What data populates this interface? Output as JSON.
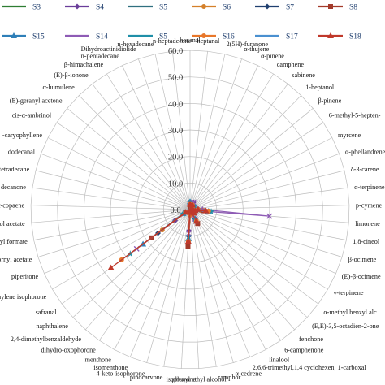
{
  "chart_data": {
    "type": "radar",
    "title": "",
    "rlim": [
      0,
      60
    ],
    "ticks": [
      "0.0",
      "10.0",
      "20.0",
      "30.0",
      "40.0",
      "50.0",
      "60.0"
    ],
    "tick_values": [
      0,
      10,
      20,
      30,
      40,
      50,
      60
    ],
    "grid": true,
    "legend_position": "top",
    "categories": [
      "hexanal",
      "heptanal",
      "2(5H)-furanone",
      "α-thujene",
      "α-pinene",
      "camphene",
      "sabinene",
      "1-heptanol",
      "β-pinene",
      "6-methyl-5-hepten-",
      "myrcene",
      "α-phellandrene",
      "δ-3-carene",
      "α-terpinene",
      "p-cymene",
      "limonene",
      "1,8-cineol",
      "β-ocimene",
      "(E)-β-ocimene",
      "γ-terpinene",
      "α-methyl benzyl alc",
      "(E,E)-3,5-octadien-2-one",
      "fenchone",
      "6-camphenone",
      "linalool",
      "2,6,6-trimethyl,1,4 cyclohexen, 1-carboxal",
      "α-cedrene",
      "camphor",
      "phenyl ethyl alcohol",
      "isophorone",
      "pinocarvone",
      "4-keto-isophorone",
      "isomenthone",
      "menthone",
      "dihydro-oxophorone",
      "2,4-dimethylbenzaldehyde",
      "naphthalene",
      "safranal",
      "methylene isophorone",
      "piperitone",
      "bornyl acetate",
      "geranyl formate",
      "ellol acetate",
      "α-copaene",
      "l decanone",
      "-tetradecane",
      "dodecanal",
      "-caryophyllene",
      "cis-α-ambrinol",
      "(E)-geranyl acetone",
      "α-humulene",
      "(E)-β-ionone",
      "β-himachalene",
      "n-pentadecane",
      "Dihydroactinidiolide",
      "n-hexadecane",
      "n-heptadecane"
    ],
    "series": [
      {
        "name": "S3",
        "color": "#2e7d32",
        "marker": "none",
        "values": [
          3,
          0,
          0,
          0,
          2,
          0,
          0,
          0,
          1,
          0,
          0,
          0,
          0,
          0,
          2,
          3,
          1,
          0,
          0,
          1,
          0,
          1,
          0,
          0,
          2,
          0,
          0,
          0,
          1,
          3,
          0,
          1,
          0,
          0,
          0,
          0,
          0,
          2,
          0,
          0,
          0,
          0,
          0,
          0,
          0,
          0,
          0,
          0,
          0,
          0,
          0,
          0,
          0,
          0,
          0,
          0,
          0
        ]
      },
      {
        "name": "S4",
        "color": "#6a3d9a",
        "marker": "diamond",
        "values": [
          2,
          0,
          1,
          0,
          3,
          0,
          0,
          0,
          1,
          0,
          0,
          0,
          0,
          0,
          3,
          4,
          2,
          0,
          0,
          1,
          0,
          2,
          0,
          0,
          4,
          0,
          0,
          1,
          1,
          8,
          1,
          1,
          0,
          0,
          0,
          0,
          0,
          7,
          2,
          0,
          0,
          0,
          0,
          0,
          0,
          0,
          0,
          0,
          0,
          0,
          0,
          0,
          0,
          0,
          0,
          0,
          0
        ]
      },
      {
        "name": "S5",
        "color": "#2f6f7f",
        "marker": "none",
        "values": [
          3,
          1,
          0,
          0,
          2,
          0,
          0,
          0,
          2,
          0,
          0,
          0,
          0,
          0,
          3,
          5,
          2,
          0,
          0,
          1,
          0,
          1,
          0,
          0,
          3,
          0,
          0,
          0,
          2,
          9,
          0,
          1,
          0,
          0,
          0,
          0,
          0,
          9,
          1,
          0,
          0,
          0,
          0,
          0,
          0,
          0,
          0,
          0,
          0,
          0,
          0,
          0,
          0,
          0,
          0,
          0,
          0
        ]
      },
      {
        "name": "S6",
        "color": "#d4802a",
        "marker": "circle",
        "values": [
          2,
          0,
          0,
          0,
          1,
          0,
          0,
          0,
          1,
          0,
          0,
          0,
          0,
          0,
          2,
          4,
          1,
          0,
          0,
          1,
          0,
          2,
          0,
          0,
          5,
          0,
          0,
          0,
          1,
          12,
          1,
          0,
          0,
          0,
          0,
          0,
          0,
          13,
          2,
          0,
          0,
          0,
          0,
          0,
          0,
          0,
          0,
          0,
          0,
          0,
          0,
          0,
          0,
          0,
          0,
          0,
          0
        ]
      },
      {
        "name": "S7",
        "color": "#1f3f6f",
        "marker": "diamond",
        "values": [
          3,
          0,
          0,
          0,
          2,
          0,
          0,
          0,
          1,
          0,
          0,
          0,
          0,
          0,
          3,
          6,
          2,
          0,
          0,
          1,
          0,
          2,
          0,
          0,
          4,
          0,
          0,
          0,
          1,
          10,
          0,
          1,
          0,
          0,
          0,
          0,
          0,
          15,
          2,
          0,
          0,
          0,
          0,
          0,
          0,
          0,
          0,
          0,
          0,
          0,
          0,
          0,
          0,
          0,
          0,
          0,
          0
        ]
      },
      {
        "name": "S8",
        "color": "#a33a2a",
        "marker": "square",
        "values": [
          2,
          0,
          1,
          0,
          2,
          0,
          0,
          0,
          1,
          0,
          0,
          0,
          0,
          0,
          2,
          5,
          1,
          0,
          0,
          1,
          0,
          1,
          0,
          0,
          6,
          0,
          0,
          0,
          2,
          14,
          1,
          1,
          0,
          0,
          0,
          0,
          0,
          18,
          2,
          0,
          0,
          0,
          0,
          0,
          0,
          0,
          0,
          0,
          0,
          0,
          0,
          0,
          0,
          0,
          0,
          0,
          0
        ]
      },
      {
        "name": "S15",
        "color": "#2f7fb8",
        "marker": "triangle",
        "values": [
          3,
          0,
          0,
          0,
          2,
          0,
          0,
          0,
          2,
          0,
          0,
          0,
          0,
          0,
          3,
          7,
          2,
          0,
          0,
          2,
          0,
          2,
          0,
          0,
          5,
          0,
          0,
          0,
          1,
          11,
          0,
          1,
          0,
          0,
          0,
          0,
          0,
          22,
          3,
          0,
          0,
          0,
          0,
          0,
          0,
          0,
          0,
          0,
          0,
          0,
          0,
          0,
          0,
          0,
          0,
          0,
          0
        ]
      },
      {
        "name": "S14",
        "color": "#8e5bb5",
        "marker": "cross",
        "values": [
          2,
          0,
          0,
          0,
          3,
          0,
          0,
          0,
          1,
          0,
          0,
          0,
          0,
          0,
          4,
          30,
          2,
          0,
          0,
          1,
          0,
          2,
          0,
          0,
          4,
          0,
          0,
          0,
          1,
          9,
          1,
          1,
          0,
          0,
          0,
          0,
          0,
          25,
          2,
          0,
          0,
          0,
          0,
          0,
          0,
          0,
          0,
          0,
          0,
          0,
          0,
          0,
          0,
          0,
          0,
          0,
          0
        ]
      },
      {
        "name": "S5",
        "color": "#1f8fa8",
        "marker": "star",
        "values": [
          3,
          0,
          0,
          0,
          2,
          0,
          0,
          0,
          2,
          0,
          0,
          0,
          0,
          0,
          3,
          8,
          2,
          0,
          0,
          1,
          0,
          1,
          0,
          0,
          4,
          0,
          0,
          0,
          1,
          10,
          0,
          1,
          0,
          0,
          0,
          0,
          0,
          28,
          3,
          0,
          0,
          0,
          0,
          0,
          0,
          0,
          0,
          0,
          0,
          0,
          0,
          0,
          0,
          0,
          0,
          0,
          0
        ]
      },
      {
        "name": "S16",
        "color": "#e8772a",
        "marker": "circle",
        "values": [
          2,
          0,
          0,
          0,
          2,
          0,
          0,
          0,
          1,
          0,
          0,
          0,
          0,
          0,
          3,
          7,
          2,
          0,
          0,
          1,
          0,
          2,
          0,
          0,
          5,
          0,
          0,
          0,
          2,
          12,
          1,
          1,
          0,
          0,
          0,
          0,
          0,
          32,
          2,
          0,
          0,
          0,
          0,
          0,
          0,
          0,
          0,
          0,
          0,
          0,
          0,
          0,
          0,
          0,
          0,
          0,
          0
        ]
      },
      {
        "name": "S17",
        "color": "#4a90d0",
        "marker": "none",
        "values": [
          3,
          0,
          0,
          0,
          2,
          0,
          0,
          0,
          1,
          0,
          0,
          0,
          0,
          0,
          3,
          6,
          2,
          0,
          0,
          1,
          0,
          1,
          0,
          0,
          4,
          0,
          0,
          0,
          1,
          11,
          0,
          1,
          0,
          0,
          0,
          0,
          0,
          34,
          2,
          0,
          0,
          0,
          0,
          0,
          0,
          0,
          0,
          0,
          0,
          0,
          0,
          0,
          0,
          0,
          0,
          0,
          0
        ]
      },
      {
        "name": "S18",
        "color": "#c0392b",
        "marker": "triangle",
        "values": [
          2,
          0,
          0,
          0,
          2,
          0,
          0,
          0,
          1,
          0,
          0,
          0,
          0,
          0,
          3,
          6,
          2,
          0,
          0,
          1,
          0,
          2,
          0,
          0,
          5,
          0,
          0,
          0,
          1,
          12,
          1,
          1,
          0,
          0,
          0,
          0,
          0,
          37,
          2,
          0,
          0,
          0,
          0,
          0,
          0,
          0,
          0,
          0,
          0,
          0,
          0,
          0,
          0,
          0,
          0,
          0,
          0
        ]
      }
    ]
  }
}
